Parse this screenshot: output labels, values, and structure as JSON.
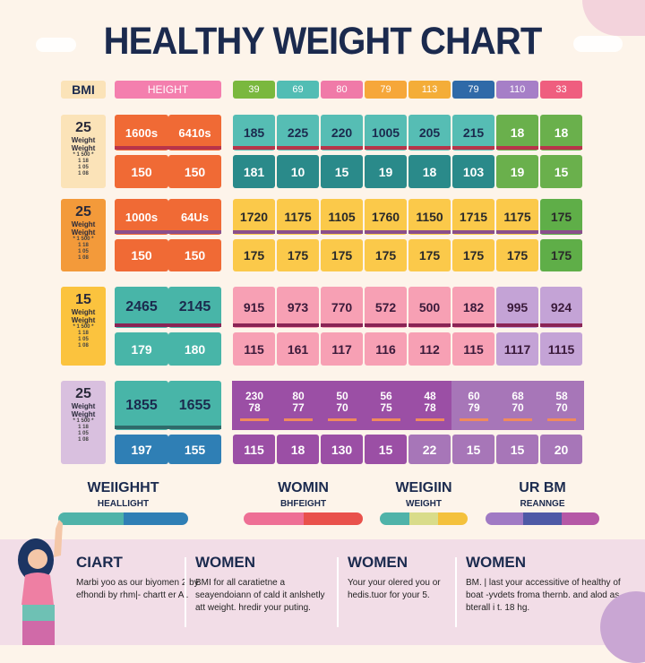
{
  "title": "HEALTHY WEIGHT CHART",
  "header": {
    "bmi": "BMI",
    "height": "HEIGHT",
    "columns": [
      "39",
      "69",
      "80",
      "79",
      "113",
      "79",
      "110",
      "33"
    ],
    "colors": [
      "#7ab83e",
      "#52bdb4",
      "#f07aa8",
      "#f6a73a",
      "#f4ad38",
      "#2f6aa8",
      "#a67fc7",
      "#ef5e7f"
    ]
  },
  "groups": [
    {
      "bmi": "25",
      "label": "Weight Weight",
      "small": [
        "* 1 500 *",
        "1 18",
        "1 05",
        "1 08"
      ],
      "height_top": [
        "1600s",
        "6410s"
      ],
      "height_bottom": [
        "150",
        "150"
      ],
      "top": [
        "185",
        "225",
        "220",
        "1005",
        "205",
        "215",
        "18",
        "18"
      ],
      "bottom": [
        "181",
        "10",
        "15",
        "19",
        "18",
        "103",
        "19",
        "15"
      ]
    },
    {
      "bmi": "25",
      "label": "Weight Weight",
      "small": [
        "* 1 500 *",
        "1 18",
        "1 05",
        "1 08"
      ],
      "height_top": [
        "1000s",
        "64Us"
      ],
      "height_bottom": [
        "150",
        "150"
      ],
      "top": [
        "1720",
        "1175",
        "1105",
        "1760",
        "1150",
        "1715",
        "1175",
        "175"
      ],
      "bottom": [
        "175",
        "175",
        "175",
        "175",
        "175",
        "175",
        "175",
        "175"
      ]
    },
    {
      "bmi": "15",
      "label": "Weight Weight",
      "small": [
        "* 1 500 *",
        "1 18",
        "1 05",
        "1 08"
      ],
      "height_top": [
        "2465",
        "2145"
      ],
      "height_bottom": [
        "179",
        "180"
      ],
      "top": [
        "915",
        "973",
        "770",
        "572",
        "500",
        "182",
        "995",
        "924"
      ],
      "bottom": [
        "115",
        "161",
        "117",
        "116",
        "112",
        "115",
        "1117",
        "1115"
      ]
    },
    {
      "bmi": "25",
      "label": "Weight Weight",
      "small": [
        "* 1 500 *",
        "1 18",
        "1 05",
        "1 08"
      ],
      "height_top": [
        "1855",
        "1655"
      ],
      "height_bottom": [
        "197",
        "155"
      ],
      "top": [
        [
          "230",
          "78"
        ],
        [
          "80",
          "77"
        ],
        [
          "50",
          "70"
        ],
        [
          "56",
          "75"
        ],
        [
          "48",
          "78"
        ],
        [
          "60",
          "79"
        ],
        [
          "68",
          "70"
        ],
        [
          "58",
          "70"
        ]
      ],
      "bottom": [
        "115",
        "18",
        "130",
        "15",
        "22",
        "15",
        "15",
        "20"
      ]
    }
  ],
  "legend": [
    {
      "title": "WEIIGHHT",
      "sub": "HEALLIGHT",
      "colors": [
        "#4fb3a9",
        "#2f7fb5"
      ]
    },
    {
      "title": "WOMIN",
      "sub": "BHFEIGHT",
      "colors": [
        "#ee6f95",
        "#e9514b"
      ]
    },
    {
      "title": "WEIGIIN",
      "sub": "WEIGHT",
      "colors": [
        "#4fb3a9",
        "#d9dc8a",
        "#f4c13c"
      ]
    },
    {
      "title": "UR BM",
      "sub": "REANNGE",
      "colors": [
        "#a07ac4",
        "#4e5aa6",
        "#b558a6"
      ]
    }
  ],
  "info": [
    {
      "title": "CIART",
      "text": "Marbi yoo as our biyomen 2 by efhondi by rhm|- chartt er Al."
    },
    {
      "title": "WOMEN",
      "text": "BMI for all caratietne a seayendoiann of cald it anlshetly att weight. hredir your puting."
    },
    {
      "title": "WOMEN",
      "text": "Your your olered you or hedis.tuor for your 5."
    },
    {
      "title": "WOMEN",
      "text": "BM. | last your accessitive of healthy of boat -yvdets froma thernb. and alod as bterall i t. 18 hg."
    }
  ]
}
